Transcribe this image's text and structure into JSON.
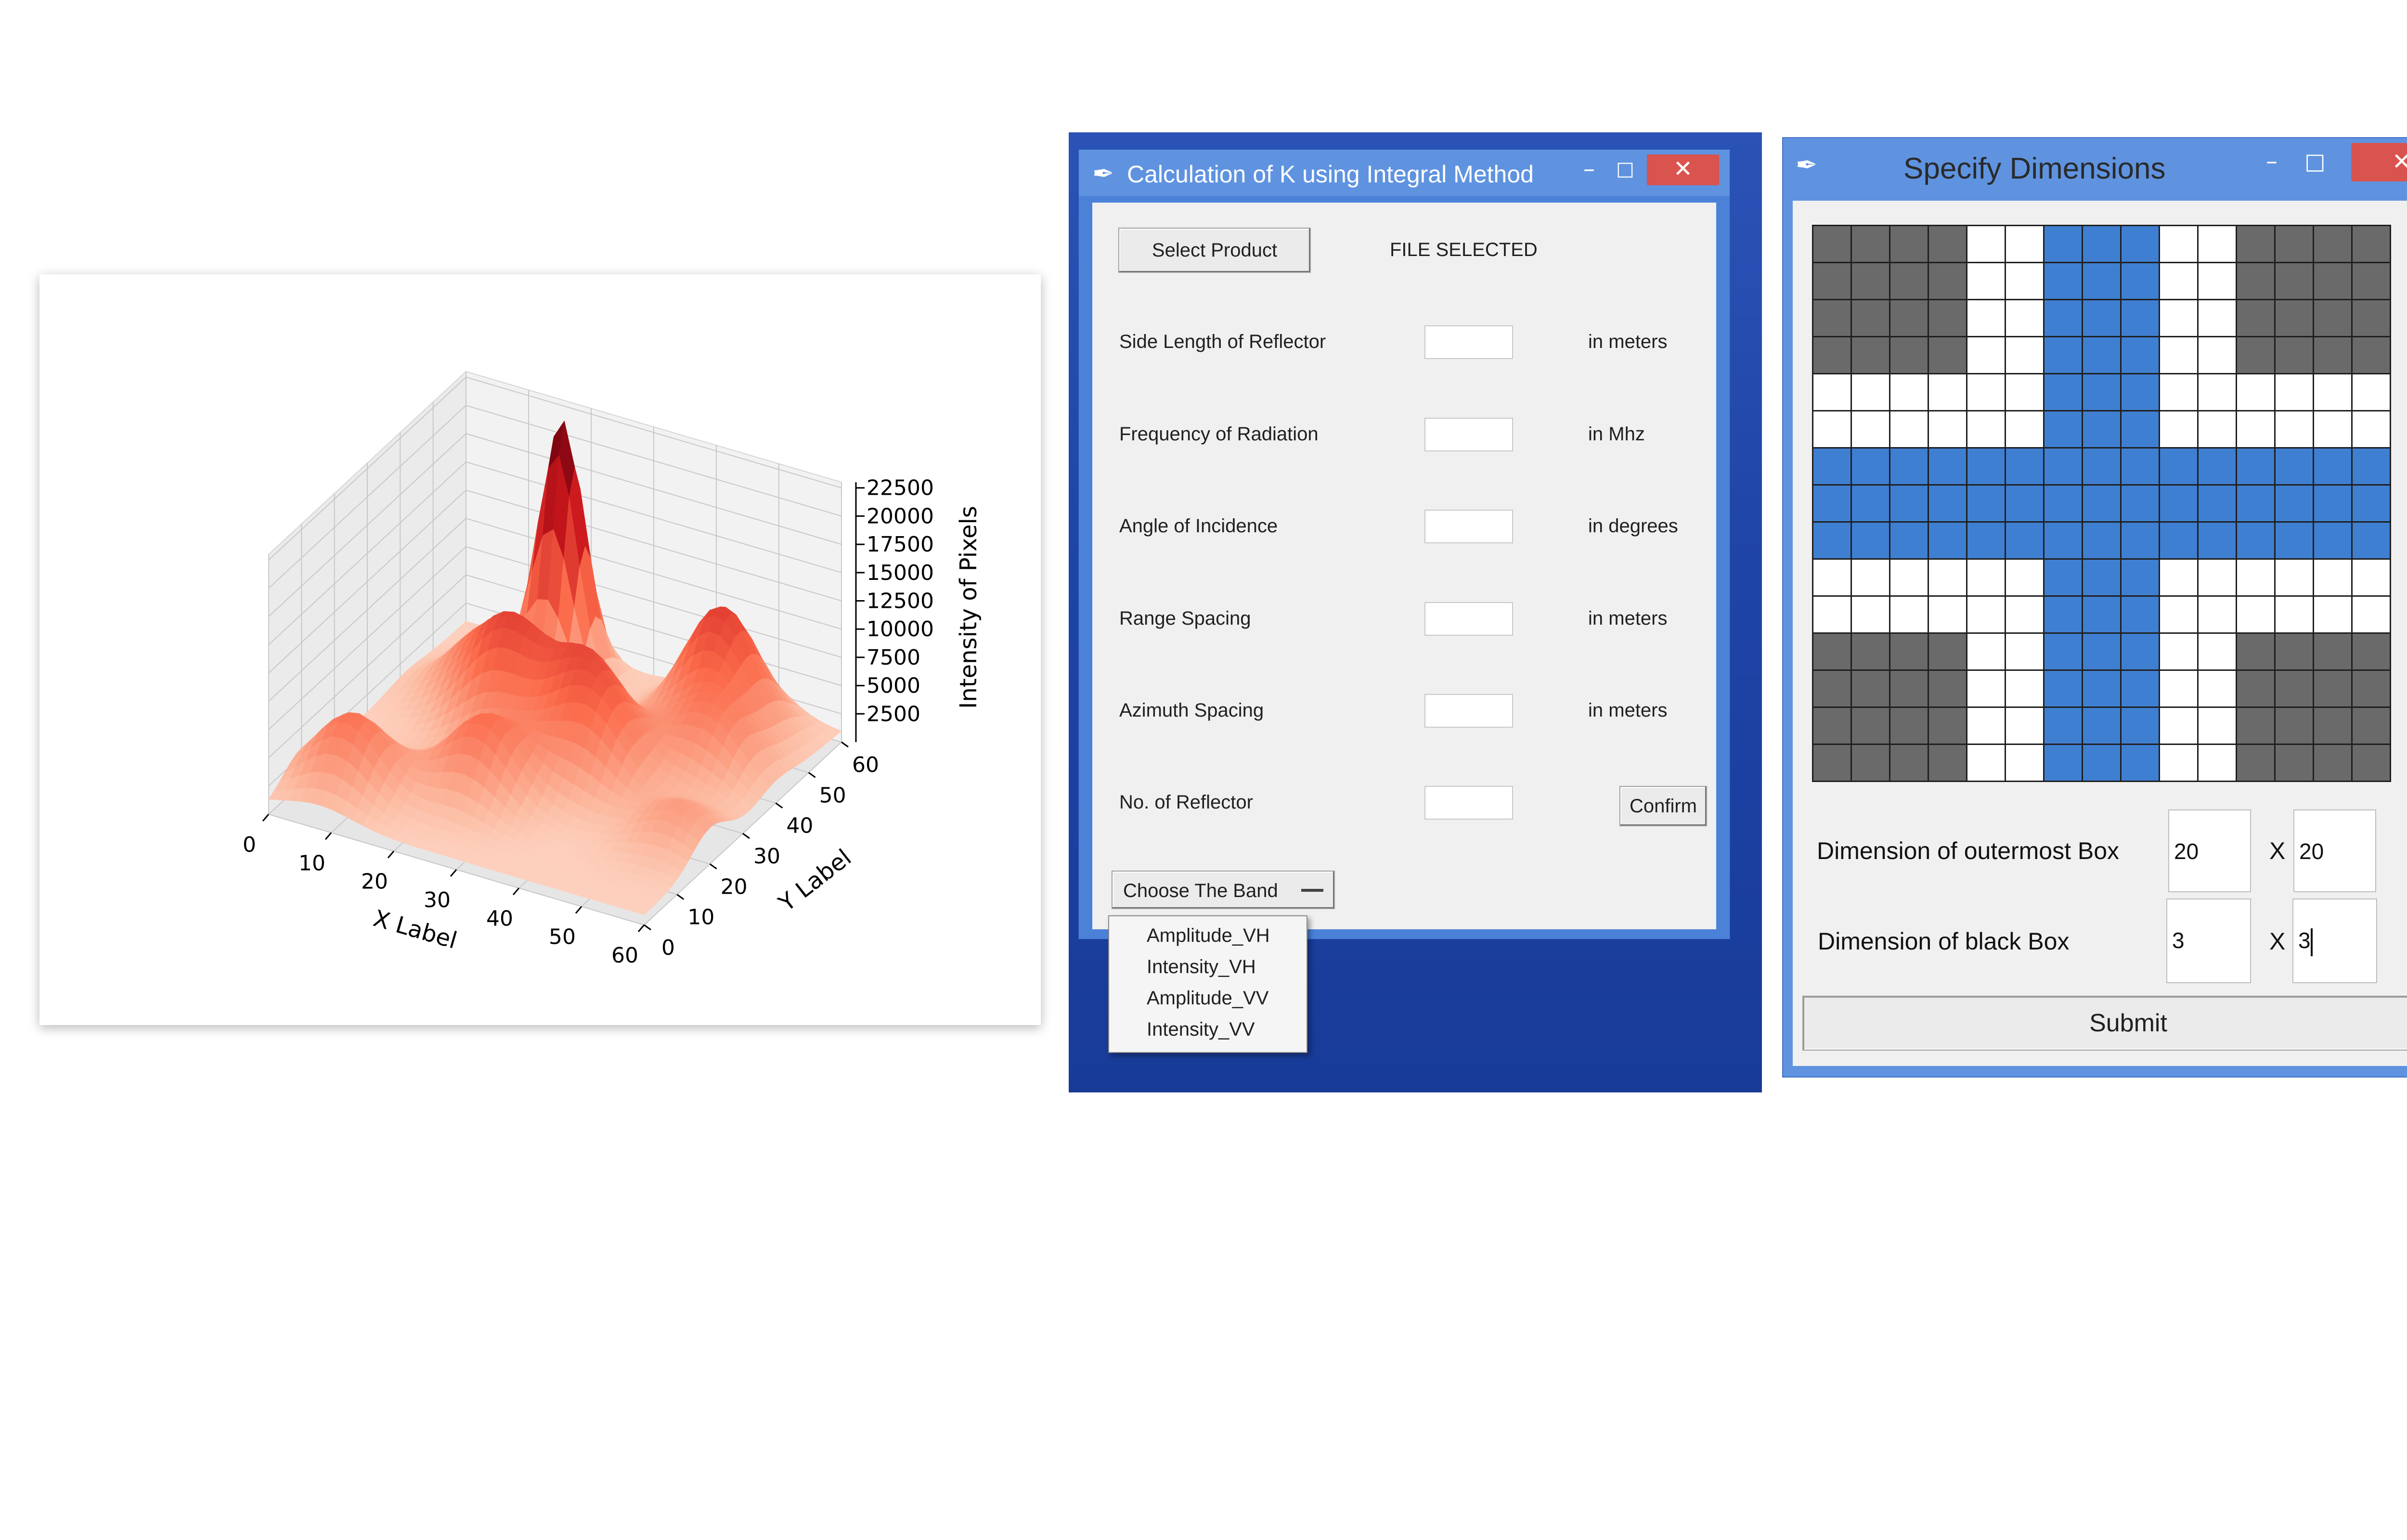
{
  "chart_data": {
    "type": "surface3d",
    "colormap": "Reds",
    "xlabel": "X Label",
    "ylabel": "Y Label",
    "zlabel": "Intensity of Pixels",
    "x_ticks": [
      "0",
      "10",
      "20",
      "30",
      "40",
      "50",
      "60"
    ],
    "y_ticks": [
      "0",
      "10",
      "20",
      "30",
      "40",
      "50",
      "60"
    ],
    "z_ticks": [
      "2500",
      "5000",
      "7500",
      "10000",
      "12500",
      "15000",
      "17500",
      "20000",
      "22500"
    ],
    "xlim": [
      0,
      60
    ],
    "ylim": [
      0,
      60
    ],
    "zlim": [
      0,
      23000
    ],
    "peaks": [
      {
        "x": 18,
        "y": 55,
        "z": 22000
      },
      {
        "x": 45,
        "y": 52,
        "z": 10500
      },
      {
        "x": 20,
        "y": 35,
        "z": 9000
      },
      {
        "x": 32,
        "y": 35,
        "z": 7500
      },
      {
        "x": 8,
        "y": 10,
        "z": 6500
      },
      {
        "x": 38,
        "y": 28,
        "z": 6000
      },
      {
        "x": 50,
        "y": 40,
        "z": 5500
      },
      {
        "x": 25,
        "y": 18,
        "z": 6800
      },
      {
        "x": 12,
        "y": 42,
        "z": 5000
      },
      {
        "x": 55,
        "y": 20,
        "z": 3500
      }
    ],
    "grid": true
  },
  "window_integral": {
    "title": "Calculation of K using Integral Method",
    "select_button": "Select Product",
    "file_status": "FILE SELECTED",
    "rows": [
      {
        "label": "Side Length of Reflector",
        "unit": "in meters"
      },
      {
        "label": "Frequency of Radiation",
        "unit": "in Mhz"
      },
      {
        "label": "Angle of Incidence",
        "unit": "in degrees"
      },
      {
        "label": "Range Spacing",
        "unit": "in meters"
      },
      {
        "label": "Azimuth Spacing",
        "unit": "in meters"
      },
      {
        "label": "No. of Reflector",
        "unit": ""
      }
    ],
    "confirm_button": "Confirm",
    "band_menu": {
      "label": "Choose The Band",
      "options": [
        "Amplitude_VH",
        "Intensity_VH",
        "Amplitude_VV",
        "Intensity_VV"
      ]
    }
  },
  "window_dimensions": {
    "title": "Specify Dimensions",
    "outer_label": "Dimension of outermost Box",
    "outer_w": "20",
    "outer_h": "20",
    "black_label": "Dimension of black Box",
    "black_w": "3",
    "black_h": "3",
    "times": "X",
    "submit": "Submit",
    "grid_colors": {
      "black": "#6a6a6a",
      "white": "#ffffff",
      "blue": "#3f7fd1"
    }
  },
  "window_controls": {
    "minimize": "–",
    "maximize": "□",
    "close": "✕",
    "app_icon": "feather-icon"
  }
}
